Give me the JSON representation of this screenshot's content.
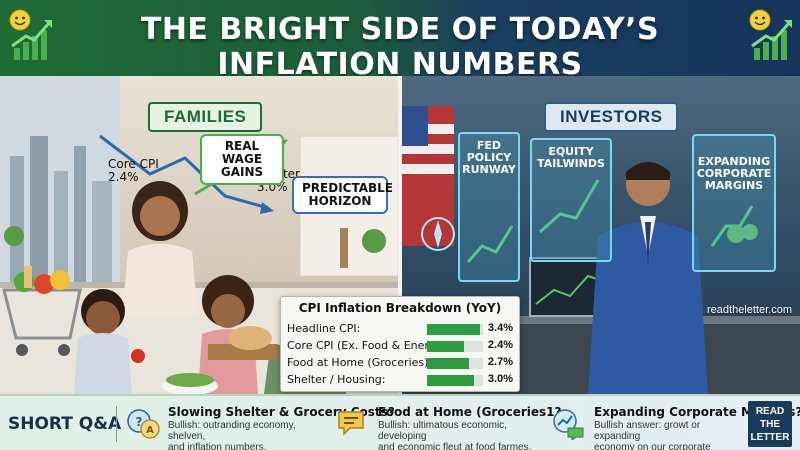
{
  "header": {
    "title": "THE BRIGHT SIDE OF TODAY’S INFLATION NUMBERS",
    "left_icon": "smiley-chart-icon",
    "right_icon": "smiley-chart-icon"
  },
  "families": {
    "label": "FAMILIES",
    "core_cpi_note": [
      "Core CPI",
      "2.4%"
    ],
    "shelter_note": [
      "Shelter",
      "3.0%"
    ],
    "callouts": [
      [
        "REAL WAGE",
        "GAINS"
      ],
      [
        "PREDICTABLE",
        "HORIZON"
      ]
    ]
  },
  "investors": {
    "label": "INVESTORS",
    "screens": [
      [
        "FED POLICY",
        "RUNWAY"
      ],
      [
        "EQUITY",
        "TAILWINDS"
      ],
      [
        "EXPANDING",
        "CORPORATE",
        "MARGINS"
      ]
    ]
  },
  "cpi_table": {
    "title": "CPI Inflation Breakdown (YoY)",
    "rows": [
      {
        "label": "Headline CPI:",
        "value": "3.4%",
        "pct": 3.4
      },
      {
        "label": "Core CPI (Ex. Food & Energy)",
        "value": "2.4%",
        "pct": 2.4
      },
      {
        "label": "Food at Home (Groceries):",
        "value": "2.7%",
        "pct": 2.7
      },
      {
        "label": "Shelter / Housing:",
        "value": "3.0%",
        "pct": 3.0
      }
    ],
    "bar_max_pct": 3.6,
    "bar_color": "#2f9b43"
  },
  "watermark": "readtheletter.com",
  "qa": {
    "title": "SHORT Q&A",
    "items": [
      {
        "icon": "speech-bubble-qa-icon",
        "question": "Slowing Shelter & Grocery Costs?",
        "answer": [
          "Bullish: outranding economy, shelven,",
          "and inflation numbers."
        ]
      },
      {
        "icon": "chat-bubble-icon",
        "question": "Food at Home (Groceries1?",
        "answer": [
          "Bullish: ultimatous economic, developing",
          "and economic fleut at food farmes."
        ]
      },
      {
        "icon": "growth-chat-icon",
        "question": "Expanding Corporate Margins?",
        "answer": [
          "Bullish answer: growt or expanding",
          "economy on our corporate sgmints."
        ]
      }
    ],
    "read_button": [
      "READ",
      "THE",
      "LETTER"
    ]
  },
  "colors": {
    "green_brand": "#1f6b35",
    "navy_brand": "#1a3a5c",
    "accent_green": "#2f9b43"
  }
}
